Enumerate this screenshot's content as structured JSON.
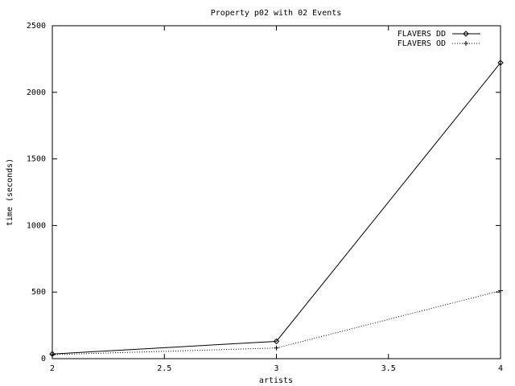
{
  "chart_data": {
    "type": "line",
    "title": "Property p02 with 02 Events",
    "x_label": "artists",
    "y_label": "time (seconds)",
    "x": [
      2,
      3,
      4
    ],
    "series": [
      {
        "name": "FLAVERS DD",
        "color": "#000000",
        "style": "solid",
        "marker": "diamond",
        "values": [
          35,
          130,
          2222
        ]
      },
      {
        "name": "FLAVERS OD",
        "color": "#000000",
        "style": "dotted",
        "marker": "plus",
        "values": [
          30,
          80,
          510
        ]
      }
    ],
    "xlim": [
      2,
      4
    ],
    "xticks": [
      2,
      2.5,
      3,
      3.5,
      4
    ],
    "ylim": [
      0,
      2500
    ],
    "yticks": [
      0,
      500,
      1000,
      1500,
      2000,
      2500
    ],
    "grid": false,
    "legend": "top-right"
  }
}
